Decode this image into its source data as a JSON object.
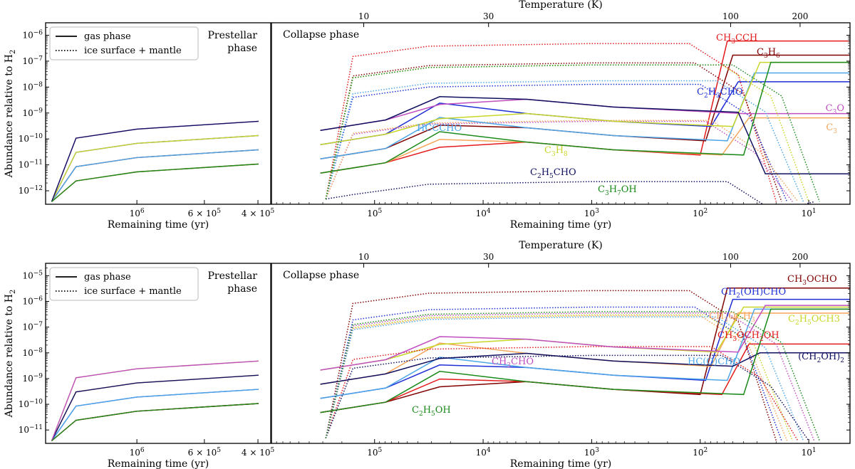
{
  "figure": {
    "legend": {
      "gas": "gas phase",
      "ice": "ice surface + mantle"
    },
    "temperature_label": "Temperature (K)",
    "remaining_time_label": "Remaining time (yr)",
    "ylabel": "Abundance relative to H2",
    "ylabel_main": "Abundance  relative to H",
    "ylabel_sub": "2",
    "prestellar_label_1": "Prestellar",
    "prestellar_label_2": "phase",
    "collapse_label": "Collapse phase"
  },
  "chart_data": [
    {
      "type": "line",
      "panel": "top",
      "title": "",
      "xlabel": "Remaining time (yr)",
      "top_xlabel": "Temperature (K)",
      "ylabel": "Abundance relative to H2",
      "ylim": [
        3e-13,
        3e-06
      ],
      "prestellar_xticks": [
        "10^6",
        "6 × 10^5",
        "4 × 10^5"
      ],
      "collapse_xticks": [
        "10^5",
        "10^4",
        "10^3",
        "10^2",
        "10^1"
      ],
      "temperature_ticks": [
        "10",
        "30",
        "100",
        "200"
      ],
      "yticks": [
        "10^-6",
        "10^-7",
        "10^-8",
        "10^-9",
        "10^-10",
        "10^-11",
        "10^-12"
      ],
      "series": [
        {
          "name": "CH3CCH",
          "color": "#e31a1c",
          "final": 6e-07
        },
        {
          "name": "C3H6",
          "color": "#800000",
          "final": 1.7e-07
        },
        {
          "name": "C2H3CHO",
          "color": "#1f2fd6",
          "final": 1.6e-08
        },
        {
          "name": "C3O",
          "color": "#c04fc0",
          "final": 9.5e-10
        },
        {
          "name": "C3",
          "color": "#f5a65b",
          "final": 6.5e-10
        },
        {
          "name": "HCCCHO",
          "color": "#4da6e8",
          "final": 3.5e-08
        },
        {
          "name": "C3H8",
          "color": "#c8d629",
          "final": 9e-08
        },
        {
          "name": "C2H5CHO",
          "color": "#101060",
          "final": 4.5e-12
        },
        {
          "name": "C3H7OH",
          "color": "#1a8a1a",
          "final": 9e-08
        }
      ]
    },
    {
      "type": "line",
      "panel": "bottom",
      "title": "",
      "xlabel": "Remaining time (yr)",
      "top_xlabel": "Temperature (K)",
      "ylabel": "Abundance relative to H2",
      "ylim": [
        3e-12,
        3e-05
      ],
      "prestellar_xticks": [
        "10^6",
        "6 × 10^5",
        "4 × 10^5"
      ],
      "collapse_xticks": [
        "10^5",
        "10^4",
        "10^3",
        "10^2",
        "10^1"
      ],
      "temperature_ticks": [
        "10",
        "30",
        "100",
        "200"
      ],
      "yticks": [
        "10^-5",
        "10^-6",
        "10^-7",
        "10^-8",
        "10^-9",
        "10^-10",
        "10^-11"
      ],
      "series": [
        {
          "name": "CH3OCHO",
          "color": "#800000",
          "final": 3.3e-06
        },
        {
          "name": "CH2(OH)CHO",
          "color": "#1f2fd6",
          "final": 1.2e-06
        },
        {
          "name": "CH3OCH3",
          "color": "#f5a65b",
          "final": 3.5e-07
        },
        {
          "name": "C2H5OCH3",
          "color": "#c8d629",
          "final": 6e-07
        },
        {
          "name": "CH3OCH2OH",
          "color": "#e31a1c",
          "final": 2.2e-08
        },
        {
          "name": "HC(O)CHO",
          "color": "#4da6e8",
          "final": 5e-07
        },
        {
          "name": "(CH2OH)2",
          "color": "#101060",
          "final": 1e-08
        },
        {
          "name": "CH3CHO",
          "color": "#c04fc0",
          "final": 7e-07
        },
        {
          "name": "C2H5OH",
          "color": "#1a8a1a",
          "final": 5e-07
        }
      ]
    }
  ],
  "top_labels": [
    {
      "main": "CH",
      "sub": "3",
      "main2": "CCH",
      "sub2": "",
      "main3": "",
      "color": "#e31a1c"
    },
    {
      "main": "C",
      "sub": "3",
      "main2": "H",
      "sub2": "6",
      "main3": "",
      "color": "#800000"
    },
    {
      "main": "C",
      "sub": "2",
      "main2": "H",
      "sub2": "3",
      "main3": "CHO",
      "color": "#1f2fd6"
    },
    {
      "main": "C",
      "sub": "3",
      "main2": "O",
      "sub2": "",
      "main3": "",
      "color": "#c04fc0"
    },
    {
      "main": "C",
      "sub": "3",
      "main2": "",
      "sub2": "",
      "main3": "",
      "color": "#f5a65b"
    },
    {
      "main": "HCCCHO",
      "sub": "",
      "main2": "",
      "sub2": "",
      "main3": "",
      "color": "#4da6e8"
    },
    {
      "main": "C",
      "sub": "3",
      "main2": "H",
      "sub2": "8",
      "main3": "",
      "color": "#c8d629"
    },
    {
      "main": "C",
      "sub": "2",
      "main2": "H",
      "sub2": "5",
      "main3": "CHO",
      "color": "#101060"
    },
    {
      "main": "C",
      "sub": "3",
      "main2": "H",
      "sub2": "7",
      "main3": "OH",
      "color": "#1a8a1a"
    }
  ],
  "bottom_labels": [
    {
      "main": "CH",
      "sub": "3",
      "main2": "OCHO",
      "sub2": "",
      "main3": "",
      "color": "#800000"
    },
    {
      "main": "CH",
      "sub": "2",
      "main2": "(OH)CHO",
      "sub2": "",
      "main3": "",
      "color": "#1f2fd6"
    },
    {
      "main": "CH",
      "sub": "3",
      "main2": "OCH",
      "sub2": "3",
      "main3": "",
      "color": "#f5a65b"
    },
    {
      "main": "C",
      "sub": "2",
      "main2": "H",
      "sub2": "5",
      "main3": "OCH3",
      "color": "#c8d629"
    },
    {
      "main": "CH",
      "sub": "3",
      "main2": "OCH",
      "sub2": "2",
      "main3": "OH",
      "color": "#e31a1c"
    },
    {
      "main": "HC(O)CHO",
      "sub": "",
      "main2": "",
      "sub2": "",
      "main3": "",
      "color": "#4da6e8"
    },
    {
      "main": "(CH",
      "sub": "2",
      "main2": "OH)",
      "sub2": "2",
      "main3": "",
      "color": "#101060"
    },
    {
      "main": "CH",
      "sub": "3",
      "main2": "CHO",
      "sub2": "",
      "main3": "",
      "color": "#c04fc0"
    },
    {
      "main": "C",
      "sub": "2",
      "main2": "H",
      "sub2": "5",
      "main3": "OH",
      "color": "#1a8a1a"
    }
  ]
}
